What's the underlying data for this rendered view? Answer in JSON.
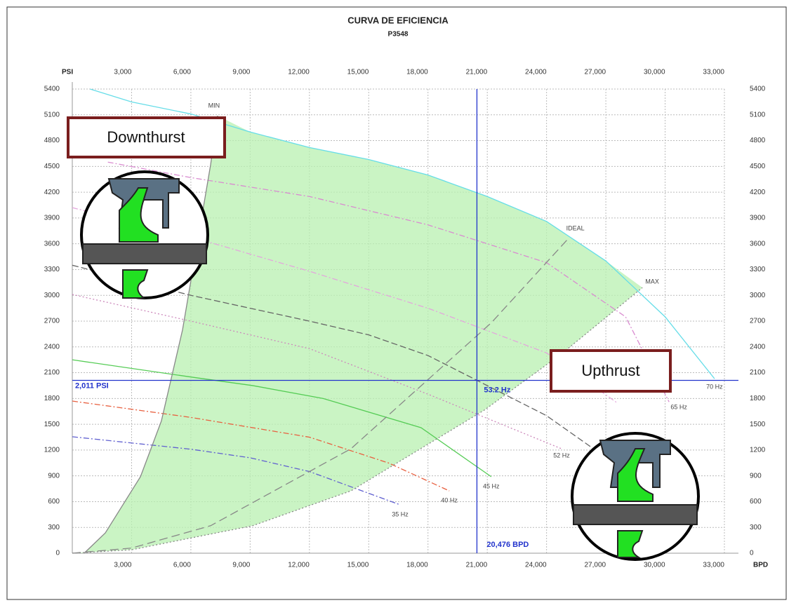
{
  "chart_data": {
    "type": "line",
    "title": "CURVA DE EFICIENCIA",
    "subtitle": "P3548",
    "y_label": "PSI",
    "x_label": "BPD",
    "xlim": [
      0,
      33000
    ],
    "ylim": [
      0,
      5400
    ],
    "xticks": [
      {
        "value": 3000,
        "label": "3,000"
      },
      {
        "value": 6000,
        "label": "6,000"
      },
      {
        "value": 9000,
        "label": "9,000"
      },
      {
        "value": 12000,
        "label": "12,000"
      },
      {
        "value": 15000,
        "label": "15,000"
      },
      {
        "value": 18000,
        "label": "18,000"
      },
      {
        "value": 21000,
        "label": "21,000"
      },
      {
        "value": 24000,
        "label": "24,000"
      },
      {
        "value": 27000,
        "label": "27,000"
      },
      {
        "value": 30000,
        "label": "30,000"
      },
      {
        "value": 33000,
        "label": "33,000"
      }
    ],
    "yticks": [
      0,
      300,
      600,
      900,
      1200,
      1500,
      1800,
      2100,
      2400,
      2700,
      3000,
      3300,
      3600,
      3900,
      4200,
      4500,
      4800,
      5100,
      5400
    ],
    "grid": true,
    "series": [
      {
        "name": "70 Hz",
        "color": "#66dde8",
        "x": [
          900,
          3000,
          6000,
          9000,
          12000,
          15000,
          18000,
          21000,
          24000,
          27000,
          30000,
          32500
        ],
        "values": [
          5400,
          5250,
          5110,
          4900,
          4720,
          4580,
          4400,
          4150,
          3860,
          3400,
          2750,
          2030
        ]
      },
      {
        "name": "65 Hz",
        "color": "#d98bd0",
        "x": [
          1800,
          6000,
          12000,
          18000,
          24000,
          28000,
          30200
        ],
        "values": [
          4550,
          4370,
          4150,
          3820,
          3380,
          2750,
          1760
        ]
      },
      {
        "color": "#e3a6dc",
        "x": [
          0,
          6000,
          12000,
          18000,
          24000,
          27600
        ],
        "values": [
          4020,
          3680,
          3280,
          2850,
          2330,
          1745
        ]
      },
      {
        "color": "#666666",
        "x": [
          0,
          6000,
          12000,
          15000,
          18000,
          20476,
          24000,
          26900
        ],
        "values": [
          3350,
          3000,
          2700,
          2540,
          2300,
          2011,
          1600,
          1130
        ]
      },
      {
        "name": "52 Hz",
        "color": "#cc88bb",
        "x": [
          0,
          6000,
          12000,
          18000,
          24760
        ],
        "values": [
          3010,
          2700,
          2380,
          1850,
          1215
        ]
      },
      {
        "name": "45 Hz",
        "color": "#55cc55",
        "x": [
          0,
          6000,
          9130,
          12700,
          17650,
          21200
        ],
        "values": [
          2250,
          2050,
          1950,
          1800,
          1460,
          890
        ]
      },
      {
        "name": "40 Hz",
        "color": "#e86040",
        "x": [
          0,
          6000,
          12000,
          16000,
          19080
        ],
        "values": [
          1770,
          1580,
          1350,
          1050,
          725
        ]
      },
      {
        "name": "35 Hz",
        "color": "#6060d0",
        "x": [
          0,
          6000,
          9000,
          12000,
          16590
        ],
        "values": [
          1355,
          1210,
          1110,
          950,
          563
        ]
      },
      {
        "name": "MIN",
        "color": "#888888",
        "x": [
          600,
          1670,
          3450,
          4510,
          5580,
          7000,
          7350
        ],
        "values": [
          0,
          236,
          890,
          1540,
          2600,
          4520,
          5090
        ]
      },
      {
        "name": "MAX",
        "color": "#888888",
        "x": [
          0,
          3000,
          9130,
          14100,
          20850,
          24760,
          28850
        ],
        "values": [
          0,
          40,
          320,
          725,
          1665,
          2320,
          3090
        ]
      },
      {
        "name": "IDEAL",
        "color": "#888888",
        "x": [
          0,
          3000,
          7000,
          14100,
          21200,
          25100
        ],
        "values": [
          0,
          60,
          320,
          1215,
          2680,
          3660
        ]
      }
    ],
    "operating_point": {
      "x": 20476,
      "x_label": "20,476 BPD",
      "y": 2011,
      "y_label": "2,011 PSI",
      "hz_label": "53.2 Hz"
    },
    "annotations": [
      "Downthurst",
      "Upthrust"
    ]
  }
}
